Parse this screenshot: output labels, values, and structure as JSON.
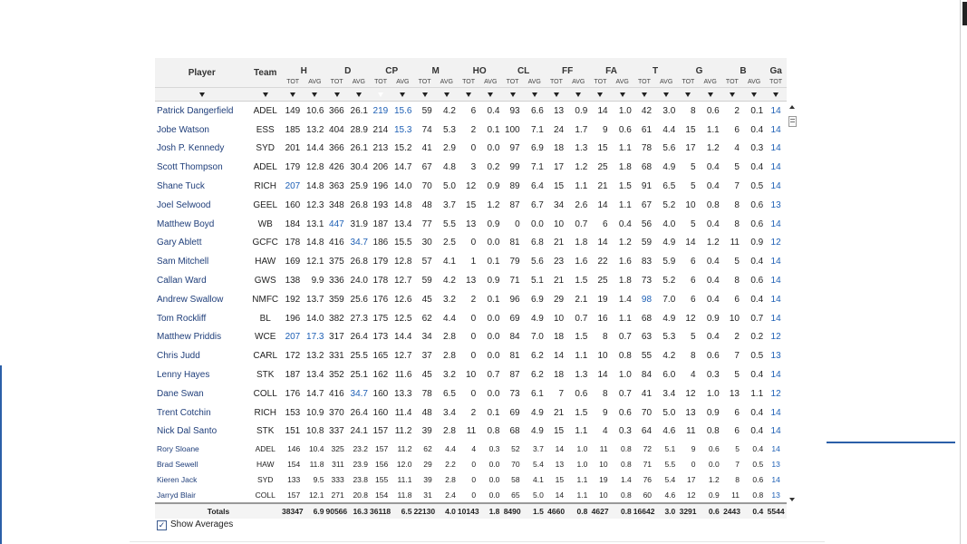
{
  "columns": {
    "player": "Player",
    "team": "Team",
    "groups": [
      "H",
      "D",
      "CP",
      "M",
      "HO",
      "CL",
      "FF",
      "FA",
      "T",
      "G",
      "B"
    ],
    "last": "Ga",
    "tot": "TOT",
    "avg": "AVG"
  },
  "filter_marker": "▼",
  "rows": [
    {
      "player": "Patrick Dangerfield",
      "team": "ADEL",
      "v": [
        "149",
        "10.6",
        "366",
        "26.1",
        "219",
        "15.6",
        "59",
        "4.2",
        "6",
        "0.4",
        "93",
        "6.6",
        "13",
        "0.9",
        "14",
        "1.0",
        "42",
        "3.0",
        "8",
        "0.6",
        "2",
        "0.1"
      ],
      "ga": "14"
    },
    {
      "player": "Jobe Watson",
      "team": "ESS",
      "v": [
        "185",
        "13.2",
        "404",
        "28.9",
        "214",
        "15.3",
        "74",
        "5.3",
        "2",
        "0.1",
        "100",
        "7.1",
        "24",
        "1.7",
        "9",
        "0.6",
        "61",
        "4.4",
        "15",
        "1.1",
        "6",
        "0.4"
      ],
      "ga": "14"
    },
    {
      "player": "Josh P. Kennedy",
      "team": "SYD",
      "v": [
        "201",
        "14.4",
        "366",
        "26.1",
        "213",
        "15.2",
        "41",
        "2.9",
        "0",
        "0.0",
        "97",
        "6.9",
        "18",
        "1.3",
        "15",
        "1.1",
        "78",
        "5.6",
        "17",
        "1.2",
        "4",
        "0.3"
      ],
      "ga": "14"
    },
    {
      "player": "Scott Thompson",
      "team": "ADEL",
      "v": [
        "179",
        "12.8",
        "426",
        "30.4",
        "206",
        "14.7",
        "67",
        "4.8",
        "3",
        "0.2",
        "99",
        "7.1",
        "17",
        "1.2",
        "25",
        "1.8",
        "68",
        "4.9",
        "5",
        "0.4",
        "5",
        "0.4"
      ],
      "ga": "14"
    },
    {
      "player": "Shane Tuck",
      "team": "RICH",
      "v": [
        "207",
        "14.8",
        "363",
        "25.9",
        "196",
        "14.0",
        "70",
        "5.0",
        "12",
        "0.9",
        "89",
        "6.4",
        "15",
        "1.1",
        "21",
        "1.5",
        "91",
        "6.5",
        "5",
        "0.4",
        "7",
        "0.5"
      ],
      "ga": "14"
    },
    {
      "player": "Joel Selwood",
      "team": "GEEL",
      "v": [
        "160",
        "12.3",
        "348",
        "26.8",
        "193",
        "14.8",
        "48",
        "3.7",
        "15",
        "1.2",
        "87",
        "6.7",
        "34",
        "2.6",
        "14",
        "1.1",
        "67",
        "5.2",
        "10",
        "0.8",
        "8",
        "0.6"
      ],
      "ga": "13"
    },
    {
      "player": "Matthew Boyd",
      "team": "WB",
      "v": [
        "184",
        "13.1",
        "447",
        "31.9",
        "187",
        "13.4",
        "77",
        "5.5",
        "13",
        "0.9",
        "0",
        "0.0",
        "10",
        "0.7",
        "6",
        "0.4",
        "56",
        "4.0",
        "5",
        "0.4",
        "8",
        "0.6"
      ],
      "ga": "14"
    },
    {
      "player": "Gary Ablett",
      "team": "GCFC",
      "v": [
        "178",
        "14.8",
        "416",
        "34.7",
        "186",
        "15.5",
        "30",
        "2.5",
        "0",
        "0.0",
        "81",
        "6.8",
        "21",
        "1.8",
        "14",
        "1.2",
        "59",
        "4.9",
        "14",
        "1.2",
        "11",
        "0.9"
      ],
      "ga": "12"
    },
    {
      "player": "Sam Mitchell",
      "team": "HAW",
      "v": [
        "169",
        "12.1",
        "375",
        "26.8",
        "179",
        "12.8",
        "57",
        "4.1",
        "1",
        "0.1",
        "79",
        "5.6",
        "23",
        "1.6",
        "22",
        "1.6",
        "83",
        "5.9",
        "6",
        "0.4",
        "5",
        "0.4"
      ],
      "ga": "14"
    },
    {
      "player": "Callan Ward",
      "team": "GWS",
      "v": [
        "138",
        "9.9",
        "336",
        "24.0",
        "178",
        "12.7",
        "59",
        "4.2",
        "13",
        "0.9",
        "71",
        "5.1",
        "21",
        "1.5",
        "25",
        "1.8",
        "73",
        "5.2",
        "6",
        "0.4",
        "8",
        "0.6"
      ],
      "ga": "14"
    },
    {
      "player": "Andrew Swallow",
      "team": "NMFC",
      "v": [
        "192",
        "13.7",
        "359",
        "25.6",
        "176",
        "12.6",
        "45",
        "3.2",
        "2",
        "0.1",
        "96",
        "6.9",
        "29",
        "2.1",
        "19",
        "1.4",
        "98",
        "7.0",
        "6",
        "0.4",
        "6",
        "0.4"
      ],
      "ga": "14"
    },
    {
      "player": "Tom Rockliff",
      "team": "BL",
      "v": [
        "196",
        "14.0",
        "382",
        "27.3",
        "175",
        "12.5",
        "62",
        "4.4",
        "0",
        "0.0",
        "69",
        "4.9",
        "10",
        "0.7",
        "16",
        "1.1",
        "68",
        "4.9",
        "12",
        "0.9",
        "10",
        "0.7"
      ],
      "ga": "14"
    },
    {
      "player": "Matthew Priddis",
      "team": "WCE",
      "v": [
        "207",
        "17.3",
        "317",
        "26.4",
        "173",
        "14.4",
        "34",
        "2.8",
        "0",
        "0.0",
        "84",
        "7.0",
        "18",
        "1.5",
        "8",
        "0.7",
        "63",
        "5.3",
        "5",
        "0.4",
        "2",
        "0.2"
      ],
      "ga": "12"
    },
    {
      "player": "Chris Judd",
      "team": "CARL",
      "v": [
        "172",
        "13.2",
        "331",
        "25.5",
        "165",
        "12.7",
        "37",
        "2.8",
        "0",
        "0.0",
        "81",
        "6.2",
        "14",
        "1.1",
        "10",
        "0.8",
        "55",
        "4.2",
        "8",
        "0.6",
        "7",
        "0.5"
      ],
      "ga": "13"
    },
    {
      "player": "Lenny Hayes",
      "team": "STK",
      "v": [
        "187",
        "13.4",
        "352",
        "25.1",
        "162",
        "11.6",
        "45",
        "3.2",
        "10",
        "0.7",
        "87",
        "6.2",
        "18",
        "1.3",
        "14",
        "1.0",
        "84",
        "6.0",
        "4",
        "0.3",
        "5",
        "0.4"
      ],
      "ga": "14"
    },
    {
      "player": "Dane Swan",
      "team": "COLL",
      "v": [
        "176",
        "14.7",
        "416",
        "34.7",
        "160",
        "13.3",
        "78",
        "6.5",
        "0",
        "0.0",
        "73",
        "6.1",
        "7",
        "0.6",
        "8",
        "0.7",
        "41",
        "3.4",
        "12",
        "1.0",
        "13",
        "1.1"
      ],
      "ga": "12"
    },
    {
      "player": "Trent Cotchin",
      "team": "RICH",
      "v": [
        "153",
        "10.9",
        "370",
        "26.4",
        "160",
        "11.4",
        "48",
        "3.4",
        "2",
        "0.1",
        "69",
        "4.9",
        "21",
        "1.5",
        "9",
        "0.6",
        "70",
        "5.0",
        "13",
        "0.9",
        "6",
        "0.4"
      ],
      "ga": "14"
    },
    {
      "player": "Nick Dal Santo",
      "team": "STK",
      "v": [
        "151",
        "10.8",
        "337",
        "24.1",
        "157",
        "11.2",
        "39",
        "2.8",
        "11",
        "0.8",
        "68",
        "4.9",
        "15",
        "1.1",
        "4",
        "0.3",
        "64",
        "4.6",
        "11",
        "0.8",
        "6",
        "0.4"
      ],
      "ga": "14"
    },
    {
      "player": "Rory Sloane",
      "team": "ADEL",
      "v": [
        "146",
        "10.4",
        "325",
        "23.2",
        "157",
        "11.2",
        "62",
        "4.4",
        "4",
        "0.3",
        "52",
        "3.7",
        "14",
        "1.0",
        "11",
        "0.8",
        "72",
        "5.1",
        "9",
        "0.6",
        "5",
        "0.4"
      ],
      "ga": "14"
    },
    {
      "player": "Brad Sewell",
      "team": "HAW",
      "v": [
        "154",
        "11.8",
        "311",
        "23.9",
        "156",
        "12.0",
        "29",
        "2.2",
        "0",
        "0.0",
        "70",
        "5.4",
        "13",
        "1.0",
        "10",
        "0.8",
        "71",
        "5.5",
        "0",
        "0.0",
        "7",
        "0.5"
      ],
      "ga": "13"
    },
    {
      "player": "Kieren Jack",
      "team": "SYD",
      "v": [
        "133",
        "9.5",
        "333",
        "23.8",
        "155",
        "11.1",
        "39",
        "2.8",
        "0",
        "0.0",
        "58",
        "4.1",
        "15",
        "1.1",
        "19",
        "1.4",
        "76",
        "5.4",
        "17",
        "1.2",
        "8",
        "0.6"
      ],
      "ga": "14"
    },
    {
      "player": "Jarryd Blair",
      "team": "COLL",
      "v": [
        "157",
        "12.1",
        "271",
        "20.8",
        "154",
        "11.8",
        "31",
        "2.4",
        "0",
        "0.0",
        "65",
        "5.0",
        "14",
        "1.1",
        "10",
        "0.8",
        "60",
        "4.6",
        "12",
        "0.9",
        "11",
        "0.8"
      ],
      "ga": "13"
    }
  ],
  "totals": {
    "label": "Totals",
    "v": [
      "38347",
      "6.9",
      "90566",
      "16.3",
      "36118",
      "6.5",
      "22130",
      "4.0",
      "10143",
      "1.8",
      "8490",
      "1.5",
      "4660",
      "0.8",
      "4627",
      "0.8",
      "16642",
      "3.0",
      "3291",
      "0.6",
      "2443",
      "0.4"
    ],
    "ga": "5544"
  },
  "show_averages": {
    "label": "Show Averages",
    "checked": true,
    "mark": "✓"
  },
  "accent_color": "#1e6fc4",
  "link_color": "#1d5fb5"
}
